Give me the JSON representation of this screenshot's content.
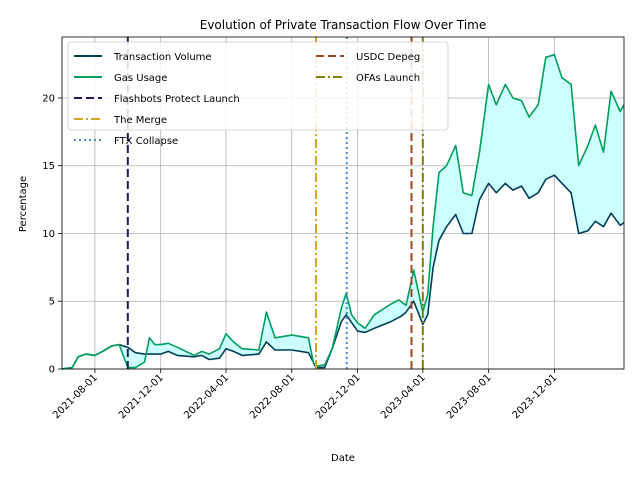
{
  "chart_data": {
    "type": "line",
    "title": "Evolution of Private Transaction Flow Over Time",
    "xlabel": "Date",
    "ylabel": "Percentage",
    "xlim": [
      "2021-06-01",
      "2024-04-08"
    ],
    "ylim": [
      0,
      24.5
    ],
    "x_ticks": [
      "2021-08-01",
      "2021-12-01",
      "2022-04-01",
      "2022-08-01",
      "2022-12-01",
      "2023-04-01",
      "2023-08-01",
      "2023-12-01"
    ],
    "y_ticks": [
      0,
      5,
      10,
      15,
      20
    ],
    "grid": true,
    "legend_position": "top-left",
    "fill_between": {
      "color": "#ccffff"
    },
    "series": [
      {
        "name": "Transaction Volume",
        "color": "#003f5c",
        "points": [
          [
            "2021-06-01",
            0
          ],
          [
            "2021-06-20",
            0.1
          ],
          [
            "2021-07-01",
            0.9
          ],
          [
            "2021-07-15",
            1.1
          ],
          [
            "2021-08-01",
            1.0
          ],
          [
            "2021-08-15",
            1.3
          ],
          [
            "2021-09-01",
            1.7
          ],
          [
            "2021-09-15",
            1.8
          ],
          [
            "2021-10-01",
            1.6
          ],
          [
            "2021-10-15",
            1.2
          ],
          [
            "2021-11-01",
            1.1
          ],
          [
            "2021-12-01",
            1.1
          ],
          [
            "2021-12-15",
            1.3
          ],
          [
            "2022-01-01",
            1.0
          ],
          [
            "2022-02-01",
            0.9
          ],
          [
            "2022-02-15",
            1.0
          ],
          [
            "2022-03-01",
            0.7
          ],
          [
            "2022-03-20",
            0.8
          ],
          [
            "2022-04-01",
            1.5
          ],
          [
            "2022-04-15",
            1.3
          ],
          [
            "2022-05-01",
            1.0
          ],
          [
            "2022-06-01",
            1.1
          ],
          [
            "2022-06-15",
            2.0
          ],
          [
            "2022-07-01",
            1.4
          ],
          [
            "2022-08-01",
            1.4
          ],
          [
            "2022-09-01",
            1.2
          ],
          [
            "2022-09-10",
            0.5
          ],
          [
            "2022-09-15",
            0.1
          ],
          [
            "2022-10-01",
            0.1
          ],
          [
            "2022-10-15",
            1.5
          ],
          [
            "2022-11-01",
            3.5
          ],
          [
            "2022-11-10",
            4.0
          ],
          [
            "2022-12-01",
            2.8
          ],
          [
            "2022-12-15",
            2.7
          ],
          [
            "2023-01-01",
            3.0
          ],
          [
            "2023-02-01",
            3.5
          ],
          [
            "2023-02-20",
            3.9
          ],
          [
            "2023-03-01",
            4.2
          ],
          [
            "2023-03-15",
            5.0
          ],
          [
            "2023-04-01",
            3.3
          ],
          [
            "2023-04-10",
            4.0
          ],
          [
            "2023-04-20",
            7.5
          ],
          [
            "2023-05-01",
            9.5
          ],
          [
            "2023-05-15",
            10.5
          ],
          [
            "2023-06-01",
            11.4
          ],
          [
            "2023-06-15",
            10.0
          ],
          [
            "2023-07-01",
            10.0
          ],
          [
            "2023-07-15",
            12.5
          ],
          [
            "2023-08-01",
            13.7
          ],
          [
            "2023-08-15",
            13.0
          ],
          [
            "2023-09-01",
            13.7
          ],
          [
            "2023-09-15",
            13.2
          ],
          [
            "2023-10-01",
            13.5
          ],
          [
            "2023-10-15",
            12.6
          ],
          [
            "2023-11-01",
            13.0
          ],
          [
            "2023-11-15",
            14.0
          ],
          [
            "2023-12-01",
            14.3
          ],
          [
            "2023-12-15",
            13.7
          ],
          [
            "2024-01-01",
            13.0
          ],
          [
            "2024-01-15",
            10.0
          ],
          [
            "2024-02-01",
            10.2
          ],
          [
            "2024-02-15",
            10.9
          ],
          [
            "2024-03-01",
            10.5
          ],
          [
            "2024-03-15",
            11.5
          ],
          [
            "2024-04-01",
            10.6
          ],
          [
            "2024-04-08",
            10.8
          ]
        ]
      },
      {
        "name": "Gas Usage",
        "color": "#00a05a",
        "points": [
          [
            "2021-06-01",
            0
          ],
          [
            "2021-06-20",
            0.1
          ],
          [
            "2021-07-01",
            0.9
          ],
          [
            "2021-07-15",
            1.1
          ],
          [
            "2021-08-01",
            1.0
          ],
          [
            "2021-08-15",
            1.3
          ],
          [
            "2021-09-01",
            1.7
          ],
          [
            "2021-09-15",
            1.8
          ],
          [
            "2021-10-01",
            0.1
          ],
          [
            "2021-10-15",
            0.1
          ],
          [
            "2021-11-01",
            0.5
          ],
          [
            "2021-11-10",
            2.3
          ],
          [
            "2021-11-20",
            1.8
          ],
          [
            "2021-12-01",
            1.8
          ],
          [
            "2021-12-15",
            1.9
          ],
          [
            "2022-01-01",
            1.6
          ],
          [
            "2022-02-01",
            1.0
          ],
          [
            "2022-02-15",
            1.3
          ],
          [
            "2022-03-01",
            1.1
          ],
          [
            "2022-03-20",
            1.5
          ],
          [
            "2022-04-01",
            2.6
          ],
          [
            "2022-04-15",
            2.0
          ],
          [
            "2022-05-01",
            1.5
          ],
          [
            "2022-06-01",
            1.4
          ],
          [
            "2022-06-15",
            4.2
          ],
          [
            "2022-07-01",
            2.3
          ],
          [
            "2022-08-01",
            2.5
          ],
          [
            "2022-09-01",
            2.3
          ],
          [
            "2022-09-10",
            0.5
          ],
          [
            "2022-09-15",
            0.2
          ],
          [
            "2022-10-01",
            0.3
          ],
          [
            "2022-10-15",
            1.5
          ],
          [
            "2022-11-01",
            4.5
          ],
          [
            "2022-11-10",
            5.6
          ],
          [
            "2022-11-20",
            4.0
          ],
          [
            "2022-12-01",
            3.4
          ],
          [
            "2022-12-15",
            3.0
          ],
          [
            "2023-01-01",
            4.0
          ],
          [
            "2023-02-01",
            4.8
          ],
          [
            "2023-02-15",
            5.1
          ],
          [
            "2023-03-01",
            4.7
          ],
          [
            "2023-03-15",
            7.3
          ],
          [
            "2023-04-01",
            4.2
          ],
          [
            "2023-04-10",
            5.5
          ],
          [
            "2023-04-20",
            10.5
          ],
          [
            "2023-05-01",
            14.5
          ],
          [
            "2023-05-15",
            15.0
          ],
          [
            "2023-06-01",
            16.5
          ],
          [
            "2023-06-15",
            13.0
          ],
          [
            "2023-07-01",
            12.8
          ],
          [
            "2023-07-15",
            16.0
          ],
          [
            "2023-08-01",
            21.0
          ],
          [
            "2023-08-15",
            19.5
          ],
          [
            "2023-09-01",
            21.0
          ],
          [
            "2023-09-15",
            20.0
          ],
          [
            "2023-10-01",
            19.8
          ],
          [
            "2023-10-15",
            18.6
          ],
          [
            "2023-11-01",
            19.5
          ],
          [
            "2023-11-15",
            23.0
          ],
          [
            "2023-12-01",
            23.2
          ],
          [
            "2023-12-15",
            21.5
          ],
          [
            "2024-01-01",
            21.0
          ],
          [
            "2024-01-15",
            15.0
          ],
          [
            "2024-02-01",
            16.5
          ],
          [
            "2024-02-15",
            18.0
          ],
          [
            "2024-03-01",
            16.0
          ],
          [
            "2024-03-15",
            20.5
          ],
          [
            "2024-04-01",
            19.0
          ],
          [
            "2024-04-08",
            19.5
          ]
        ]
      }
    ],
    "events": [
      {
        "name": "Flashbots Protect Launch",
        "date": "2021-10-01",
        "color": "#1f1a5e",
        "style": "dashed"
      },
      {
        "name": "The Merge",
        "date": "2022-09-15",
        "color": "#d4a520",
        "style": "dashdot"
      },
      {
        "name": "FTX Collapse",
        "date": "2022-11-11",
        "color": "#4a86c8",
        "style": "dotted"
      },
      {
        "name": "USDC Depeg",
        "date": "2023-03-11",
        "color": "#a0471e",
        "style": "dashed"
      },
      {
        "name": "OFAs Launch",
        "date": "2023-04-01",
        "color": "#808000",
        "style": "dashdot"
      }
    ]
  }
}
